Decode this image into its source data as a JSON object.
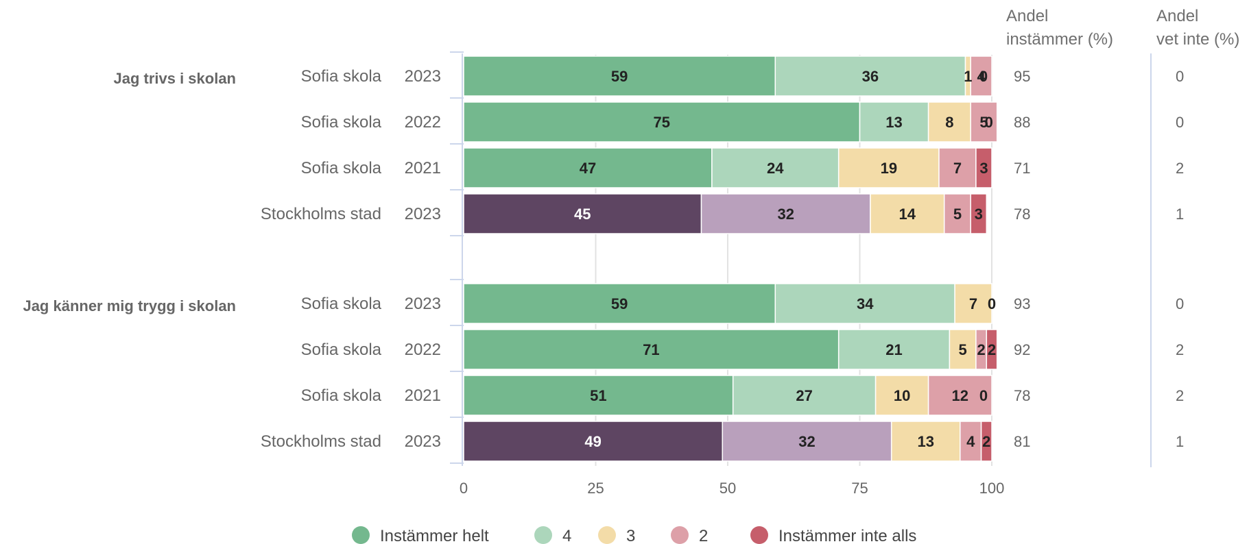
{
  "chart_data": {
    "type": "bar",
    "orientation": "horizontal",
    "stacked": true,
    "xlim": [
      0,
      100
    ],
    "x_ticks": [
      "0",
      "25",
      "50",
      "75",
      "100"
    ],
    "grid": true,
    "legend_position": "bottom-center",
    "col_headers": {
      "agree": [
        "Andel",
        "instämmer (%)"
      ],
      "dontknow": [
        "Andel",
        "vet inte (%)"
      ]
    },
    "segment_names": [
      "Instämmer helt",
      "4",
      "3",
      "2",
      "Instämmer inte alls"
    ],
    "legend": [
      {
        "label": "Instämmer helt",
        "color": "#74b88e"
      },
      {
        "label": "4",
        "color": "#acd6bb"
      },
      {
        "label": "3",
        "color": "#f3dca8"
      },
      {
        "label": "2",
        "color": "#dda0a8"
      },
      {
        "label": "Instämmer inte alls",
        "color": "#c65e6b"
      }
    ],
    "palettes": {
      "school": [
        "#74b88e",
        "#acd6bb",
        "#f3dca8",
        "#dda0a8",
        "#c65e6b"
      ],
      "city": [
        "#5e4562",
        "#b9a0bc",
        "#f3dca8",
        "#dda0a8",
        "#c65e6b"
      ]
    },
    "groups": [
      {
        "question": "Jag trivs i skolan",
        "rows": [
          {
            "unit": "Sofia skola",
            "year": "2023",
            "palette": "school",
            "values": [
              59,
              36,
              1,
              4,
              0
            ],
            "labels": [
              "59",
              "36",
              "1",
              "4",
              "0"
            ],
            "agree": "95",
            "dontknow": "0"
          },
          {
            "unit": "Sofia skola",
            "year": "2022",
            "palette": "school",
            "values": [
              75,
              13,
              8,
              5,
              0
            ],
            "labels": [
              "75",
              "13",
              "8",
              "5",
              "0"
            ],
            "agree": "88",
            "dontknow": "0"
          },
          {
            "unit": "Sofia skola",
            "year": "2021",
            "palette": "school",
            "values": [
              47,
              24,
              19,
              7,
              3
            ],
            "labels": [
              "47",
              "24",
              "19",
              "7",
              "3"
            ],
            "agree": "71",
            "dontknow": "2"
          },
          {
            "unit": "Stockholms stad",
            "year": "2023",
            "palette": "city",
            "values": [
              45,
              32,
              14,
              5,
              3
            ],
            "labels": [
              "45",
              "32",
              "14",
              "5",
              "3"
            ],
            "agree": "78",
            "dontknow": "1"
          }
        ]
      },
      {
        "question": "Jag känner mig trygg i skolan",
        "rows": [
          {
            "unit": "Sofia skola",
            "year": "2023",
            "palette": "school",
            "values": [
              59,
              34,
              7,
              0,
              0
            ],
            "labels": [
              "59",
              "34",
              "7",
              "0",
              ""
            ],
            "agree": "93",
            "dontknow": "0"
          },
          {
            "unit": "Sofia skola",
            "year": "2022",
            "palette": "school",
            "values": [
              71,
              21,
              5,
              2,
              2
            ],
            "labels": [
              "71",
              "21",
              "5",
              "2",
              "2"
            ],
            "agree": "92",
            "dontknow": "2"
          },
          {
            "unit": "Sofia skola",
            "year": "2021",
            "palette": "school",
            "values": [
              51,
              27,
              10,
              12,
              0
            ],
            "labels": [
              "51",
              "27",
              "10",
              "12",
              "0"
            ],
            "agree": "78",
            "dontknow": "2"
          },
          {
            "unit": "Stockholms stad",
            "year": "2023",
            "palette": "city",
            "values": [
              49,
              32,
              13,
              4,
              2
            ],
            "labels": [
              "49",
              "32",
              "13",
              "4",
              "2"
            ],
            "agree": "81",
            "dontknow": "1"
          }
        ]
      }
    ]
  }
}
